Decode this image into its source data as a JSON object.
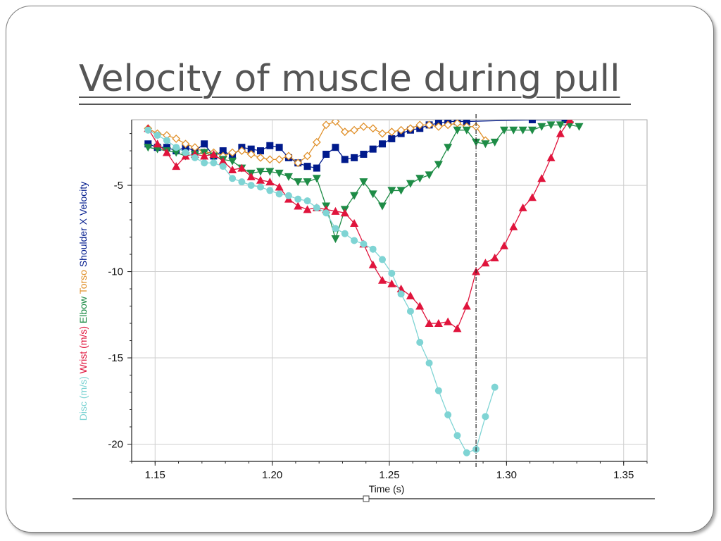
{
  "slide": {
    "title": "Velocity of muscle during pull"
  },
  "chart_data": {
    "type": "line",
    "xlabel": "Time (s)",
    "ylabel_parts": [
      {
        "text": "Disc (m/s)",
        "color": "#7fd4d4"
      },
      {
        "text": "Wrist (m/s)",
        "color": "#e0143c"
      },
      {
        "text": "Elbow",
        "color": "#1e8c46"
      },
      {
        "text": "Torso",
        "color": "#e0902a"
      },
      {
        "text": "Shoulder X Velocity",
        "color": "#001a8c"
      }
    ],
    "xlim": [
      1.14,
      1.36
    ],
    "ylim": [
      -21,
      -1.2
    ],
    "x_ticks": [
      1.15,
      1.2,
      1.25,
      1.3,
      1.35
    ],
    "x_tick_labels": [
      "1.15",
      "1.20",
      "1.25",
      "1.30",
      "1.35"
    ],
    "y_ticks": [
      -5,
      -10,
      -15,
      -20
    ],
    "y_tick_labels": [
      "-5",
      "-10",
      "-15",
      "-20"
    ],
    "grid": true,
    "cursor_x": 1.287,
    "series": [
      {
        "name": "Shoulder X Velocity",
        "color": "#001a8c",
        "marker": "square",
        "x": [
          1.147,
          1.151,
          1.155,
          1.159,
          1.163,
          1.167,
          1.171,
          1.175,
          1.179,
          1.183,
          1.187,
          1.191,
          1.195,
          1.199,
          1.203,
          1.207,
          1.211,
          1.215,
          1.219,
          1.223,
          1.227,
          1.231,
          1.235,
          1.239,
          1.243,
          1.247,
          1.251,
          1.255,
          1.259,
          1.263,
          1.267,
          1.271,
          1.275,
          1.279,
          1.283,
          1.311,
          1.325
        ],
        "y": [
          -2.6,
          -2.8,
          -2.8,
          -3.0,
          -2.8,
          -3.0,
          -2.6,
          -3.3,
          -3.0,
          -3.3,
          -2.8,
          -2.9,
          -3.0,
          -2.7,
          -2.8,
          -3.4,
          -3.7,
          -3.9,
          -4.0,
          -3.2,
          -2.8,
          -3.5,
          -3.4,
          -3.2,
          -2.9,
          -2.6,
          -2.3,
          -2.0,
          -1.8,
          -1.7,
          -1.5,
          -1.4,
          -1.3,
          -1.3,
          -1.3,
          -1.2,
          -1.2
        ]
      },
      {
        "name": "Torso",
        "color": "#e0902a",
        "marker": "diamond-open",
        "x": [
          1.147,
          1.151,
          1.155,
          1.159,
          1.163,
          1.167,
          1.171,
          1.175,
          1.179,
          1.183,
          1.187,
          1.191,
          1.195,
          1.199,
          1.203,
          1.207,
          1.211,
          1.215,
          1.219,
          1.223,
          1.227,
          1.231,
          1.235,
          1.239,
          1.243,
          1.247,
          1.251,
          1.255,
          1.259,
          1.263,
          1.267,
          1.271,
          1.275,
          1.279,
          1.283,
          1.287,
          1.291
        ],
        "y": [
          -1.7,
          -2.0,
          -2.1,
          -2.3,
          -2.6,
          -2.8,
          -3.1,
          -3.1,
          -3.3,
          -3.1,
          -3.0,
          -3.2,
          -3.4,
          -3.5,
          -3.5,
          -3.3,
          -3.7,
          -3.3,
          -2.5,
          -1.5,
          -1.3,
          -1.9,
          -1.8,
          -1.6,
          -1.7,
          -2.0,
          -1.9,
          -1.8,
          -1.7,
          -1.5,
          -1.5,
          -1.6,
          -1.5,
          -1.4,
          -1.6,
          -1.6,
          -2.4
        ]
      },
      {
        "name": "Elbow",
        "color": "#1e8c46",
        "marker": "triangle-down",
        "x": [
          1.147,
          1.151,
          1.155,
          1.159,
          1.163,
          1.167,
          1.171,
          1.175,
          1.179,
          1.183,
          1.187,
          1.191,
          1.195,
          1.199,
          1.203,
          1.207,
          1.211,
          1.215,
          1.219,
          1.223,
          1.227,
          1.231,
          1.235,
          1.239,
          1.243,
          1.247,
          1.251,
          1.255,
          1.259,
          1.263,
          1.267,
          1.271,
          1.275,
          1.279,
          1.283,
          1.287,
          1.291,
          1.295,
          1.299,
          1.303,
          1.307,
          1.311,
          1.315,
          1.319,
          1.323,
          1.327,
          1.331
        ],
        "y": [
          -2.8,
          -2.9,
          -3.0,
          -3.1,
          -3.3,
          -3.2,
          -3.1,
          -3.3,
          -3.5,
          -3.6,
          -4.0,
          -4.3,
          -4.2,
          -4.2,
          -4.3,
          -4.5,
          -4.8,
          -4.8,
          -4.6,
          -6.2,
          -8.1,
          -6.4,
          -5.6,
          -4.8,
          -5.5,
          -6.2,
          -5.3,
          -5.3,
          -4.9,
          -4.6,
          -4.4,
          -3.8,
          -2.8,
          -1.8,
          -1.8,
          -2.5,
          -2.6,
          -2.5,
          -1.8,
          -1.8,
          -1.8,
          -1.8,
          -1.6,
          -1.5,
          -1.5,
          -1.5,
          -1.6
        ]
      },
      {
        "name": "Wrist (m/s)",
        "color": "#e0143c",
        "marker": "triangle-up",
        "x": [
          1.147,
          1.151,
          1.155,
          1.159,
          1.163,
          1.167,
          1.171,
          1.175,
          1.179,
          1.183,
          1.187,
          1.191,
          1.195,
          1.199,
          1.203,
          1.207,
          1.211,
          1.215,
          1.219,
          1.223,
          1.227,
          1.231,
          1.235,
          1.239,
          1.243,
          1.247,
          1.251,
          1.255,
          1.259,
          1.263,
          1.267,
          1.271,
          1.275,
          1.279,
          1.283,
          1.287,
          1.291,
          1.295,
          1.299,
          1.303,
          1.307,
          1.311,
          1.315,
          1.319,
          1.323,
          1.327
        ],
        "y": [
          -1.7,
          -2.6,
          -3.1,
          -3.9,
          -3.3,
          -3.2,
          -3.3,
          -3.2,
          -3.6,
          -4.1,
          -4.0,
          -4.5,
          -4.7,
          -4.8,
          -5.1,
          -5.8,
          -6.2,
          -6.4,
          -6.3,
          -6.4,
          -6.5,
          -6.6,
          -7.2,
          -8.4,
          -9.6,
          -10.5,
          -10.7,
          -11.0,
          -11.4,
          -12.0,
          -13.0,
          -13.0,
          -12.9,
          -13.3,
          -12.0,
          -10.0,
          -9.5,
          -9.2,
          -8.5,
          -7.4,
          -6.3,
          -5.7,
          -4.6,
          -3.4,
          -2.0,
          -1.2
        ]
      },
      {
        "name": "Disc (m/s)",
        "color": "#7fd4d4",
        "marker": "circle",
        "x": [
          1.147,
          1.151,
          1.155,
          1.159,
          1.163,
          1.167,
          1.171,
          1.175,
          1.179,
          1.183,
          1.187,
          1.191,
          1.195,
          1.199,
          1.203,
          1.207,
          1.211,
          1.215,
          1.219,
          1.223,
          1.227,
          1.231,
          1.235,
          1.239,
          1.243,
          1.247,
          1.251,
          1.255,
          1.259,
          1.263,
          1.267,
          1.271,
          1.275,
          1.279,
          1.283,
          1.287,
          1.291,
          1.295
        ],
        "y": [
          -1.8,
          -2.1,
          -2.4,
          -2.8,
          -3.1,
          -3.4,
          -3.7,
          -3.7,
          -3.9,
          -4.6,
          -4.8,
          -5.0,
          -5.1,
          -5.3,
          -5.5,
          -5.6,
          -5.8,
          -5.9,
          -6.3,
          -6.6,
          -7.5,
          -7.8,
          -8.2,
          -8.4,
          -8.7,
          -9.3,
          -10.1,
          -11.3,
          -12.3,
          -14.1,
          -15.3,
          -16.9,
          -18.3,
          -19.5,
          -20.5,
          -20.3,
          -18.4,
          -16.7
        ]
      }
    ]
  }
}
